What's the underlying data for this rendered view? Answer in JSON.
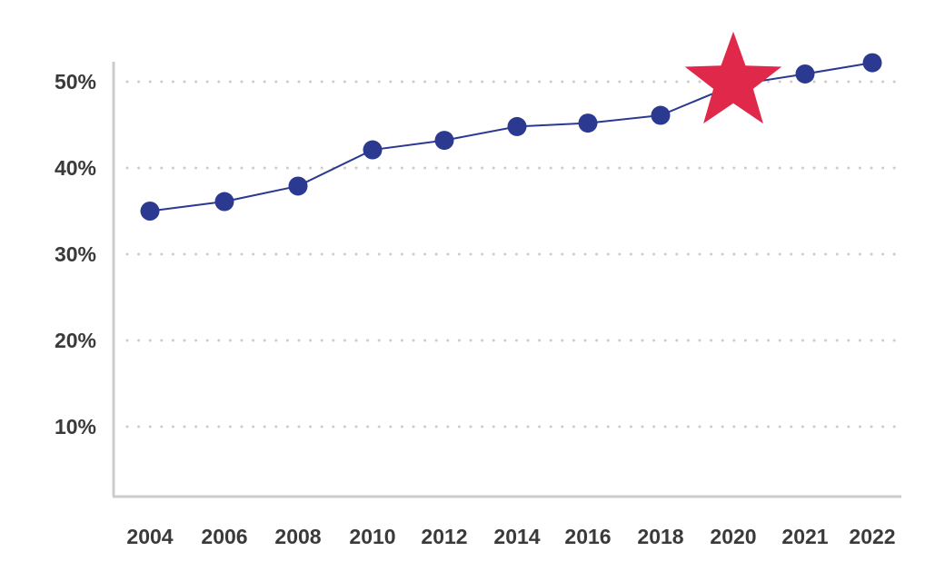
{
  "chart_data": {
    "type": "line",
    "title": "",
    "xlabel": "",
    "ylabel": "",
    "categories": [
      "2004",
      "2006",
      "2008",
      "2010",
      "2012",
      "2014",
      "2016",
      "2018",
      "2020",
      "2021",
      "2022"
    ],
    "series": [
      {
        "name": "",
        "values": [
          35.0,
          36.1,
          37.9,
          42.1,
          43.2,
          44.8,
          45.2,
          46.1,
          49.6,
          50.9,
          52.2
        ],
        "markers": [
          "circle",
          "circle",
          "circle",
          "circle",
          "circle",
          "circle",
          "circle",
          "circle",
          "star",
          "circle",
          "circle"
        ]
      }
    ],
    "yticks": [
      {
        "value": 10,
        "label": "10%"
      },
      {
        "value": 20,
        "label": "20%"
      },
      {
        "value": 30,
        "label": "30%"
      },
      {
        "value": 40,
        "label": "40%"
      },
      {
        "value": 50,
        "label": "50%"
      }
    ],
    "ylim": [
      0,
      52
    ],
    "grid": "horizontal-dotted",
    "highlight_category": "2020",
    "colors": {
      "line": "#2b3990",
      "marker": "#2b3990",
      "highlight": "#e0294a",
      "axis": "#cccccc",
      "grid": "#cccccc",
      "text": "#3a3a3a"
    }
  }
}
